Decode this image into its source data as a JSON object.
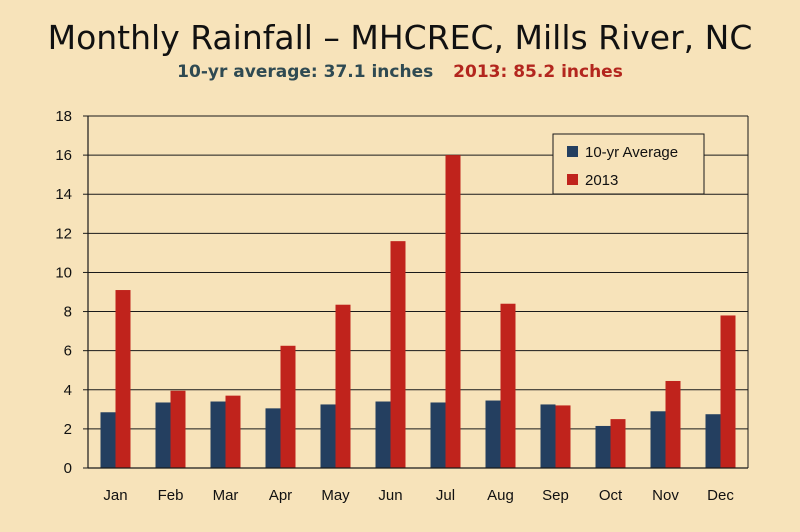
{
  "chart_data": {
    "type": "bar",
    "title": "Monthly Rainfall – MHCREC, Mills River, NC",
    "subtitle_avg": "10-yr average: 37.1 inches",
    "subtitle_2013": "2013: 85.2 inches",
    "categories": [
      "Jan",
      "Feb",
      "Mar",
      "Apr",
      "May",
      "Jun",
      "Jul",
      "Aug",
      "Sep",
      "Oct",
      "Nov",
      "Dec"
    ],
    "series": [
      {
        "name": "10-yr Average",
        "color": "#243f60",
        "values": [
          2.85,
          3.35,
          3.4,
          3.05,
          3.25,
          3.4,
          3.35,
          3.45,
          3.25,
          2.15,
          2.9,
          2.75
        ]
      },
      {
        "name": "2013",
        "color": "#c0231c",
        "values": [
          9.1,
          3.95,
          3.7,
          6.25,
          8.35,
          11.6,
          16.0,
          8.4,
          3.2,
          2.5,
          4.45,
          7.8
        ]
      }
    ],
    "ylim": [
      0,
      18
    ],
    "yticks": [
      0,
      2,
      4,
      6,
      8,
      10,
      12,
      14,
      16,
      18
    ],
    "grid": true,
    "legend_position": "top-right"
  }
}
